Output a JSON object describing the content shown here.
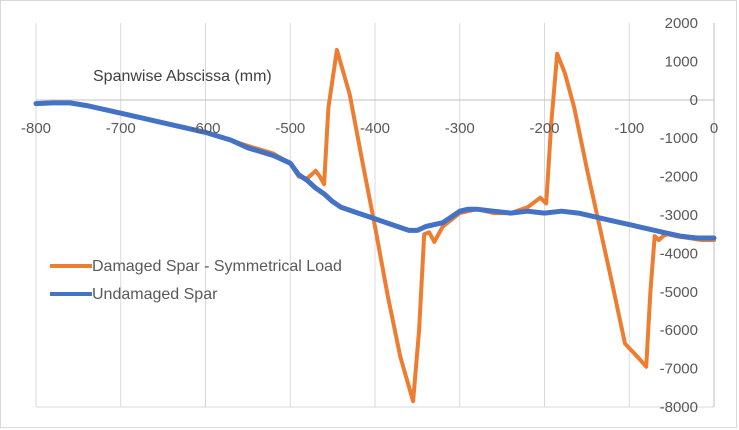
{
  "chart_data": {
    "type": "line",
    "title": "",
    "xlabel": "Spanwise Abscissa (mm)",
    "ylabel": "",
    "xlim": [
      -800,
      0
    ],
    "ylim": [
      -8000,
      2000
    ],
    "x_ticks": [
      -800,
      -700,
      -600,
      -500,
      -400,
      -300,
      -200,
      -100,
      0
    ],
    "y_ticks": [
      2000,
      1000,
      0,
      -1000,
      -2000,
      -3000,
      -4000,
      -5000,
      -6000,
      -7000,
      -8000
    ],
    "grid": "vertical",
    "legend_position": "left-middle",
    "series": [
      {
        "name": "Damaged Spar - Symmetrical Load",
        "color": "#ED7D31",
        "x": [
          -800,
          -780,
          -760,
          -740,
          -700,
          -650,
          -600,
          -550,
          -520,
          -500,
          -490,
          -480,
          -470,
          -465,
          -460,
          -455,
          -445,
          -430,
          -415,
          -400,
          -385,
          -370,
          -355,
          -348,
          -342,
          -336,
          -330,
          -320,
          -300,
          -280,
          -260,
          -240,
          -220,
          -205,
          -198,
          -192,
          -185,
          -176,
          -165,
          -150,
          -135,
          -120,
          -105,
          -90,
          -80,
          -75,
          -70,
          -65,
          -60,
          -55,
          -45,
          -30,
          -15,
          0
        ],
        "y": [
          -100,
          -80,
          -80,
          -150,
          -350,
          -600,
          -850,
          -1200,
          -1400,
          -1650,
          -2000,
          -2050,
          -1850,
          -2000,
          -2200,
          -200,
          1300,
          150,
          -1600,
          -3300,
          -5100,
          -6700,
          -7850,
          -6000,
          -3500,
          -3450,
          -3700,
          -3300,
          -2950,
          -2850,
          -2950,
          -2950,
          -2800,
          -2550,
          -2700,
          -600,
          1200,
          700,
          -200,
          -1800,
          -3300,
          -4800,
          -6350,
          -6700,
          -6950,
          -5000,
          -3550,
          -3650,
          -3550,
          -3500,
          -3550,
          -3600,
          -3650,
          -3650
        ]
      },
      {
        "name": "Undamaged Spar",
        "color": "#4472C4",
        "x": [
          -800,
          -780,
          -760,
          -740,
          -700,
          -650,
          -600,
          -570,
          -550,
          -520,
          -500,
          -490,
          -480,
          -470,
          -460,
          -450,
          -440,
          -420,
          -400,
          -380,
          -360,
          -350,
          -340,
          -320,
          -300,
          -290,
          -280,
          -260,
          -240,
          -220,
          -200,
          -180,
          -160,
          -140,
          -120,
          -100,
          -80,
          -60,
          -40,
          -20,
          0
        ],
        "y": [
          -100,
          -80,
          -80,
          -150,
          -350,
          -600,
          -850,
          -1050,
          -1250,
          -1450,
          -1650,
          -1950,
          -2100,
          -2300,
          -2450,
          -2650,
          -2800,
          -2950,
          -3100,
          -3250,
          -3400,
          -3400,
          -3300,
          -3200,
          -2900,
          -2850,
          -2850,
          -2900,
          -2950,
          -2900,
          -2950,
          -2900,
          -2950,
          -3050,
          -3150,
          -3250,
          -3350,
          -3450,
          -3550,
          -3600,
          -3600
        ]
      }
    ]
  }
}
